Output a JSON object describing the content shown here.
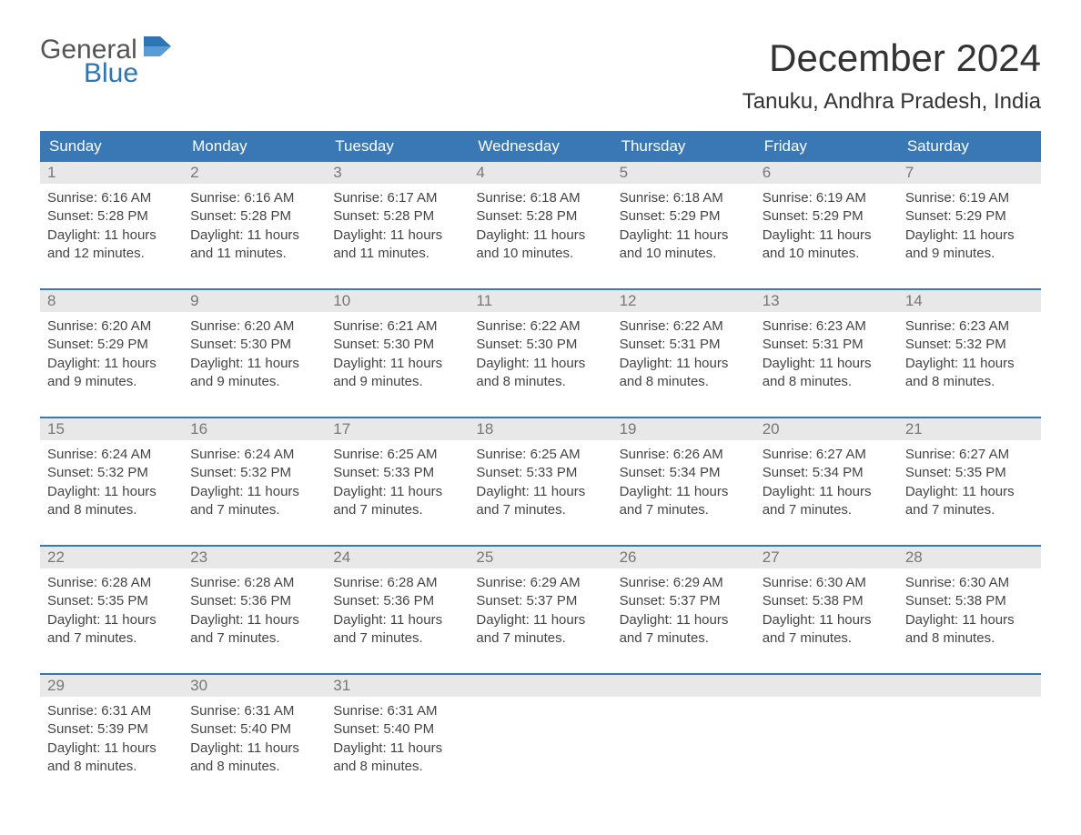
{
  "brand": {
    "word1": "General",
    "word2": "Blue",
    "flag_color": "#2e75b6",
    "word1_color": "#555555",
    "word2_color": "#2e75b6"
  },
  "header": {
    "month_title": "December 2024",
    "location": "Tanuku, Andhra Pradesh, India"
  },
  "colors": {
    "header_bg": "#3a78b5",
    "header_text": "#ffffff",
    "daynum_bg": "#e8e8e8",
    "daynum_text": "#777777",
    "body_text": "#444444",
    "week_border": "#3a78b5",
    "page_bg": "#ffffff"
  },
  "typography": {
    "month_title_fontsize": 42,
    "location_fontsize": 24,
    "dayheader_fontsize": 17,
    "daynum_fontsize": 17,
    "cell_fontsize": 15
  },
  "day_names": [
    "Sunday",
    "Monday",
    "Tuesday",
    "Wednesday",
    "Thursday",
    "Friday",
    "Saturday"
  ],
  "labels": {
    "sunrise": "Sunrise:",
    "sunset": "Sunset:",
    "daylight_prefix": "Daylight:",
    "hours_word": "hours",
    "and_word": "and",
    "minutes_word": "minutes."
  },
  "weeks": [
    [
      {
        "n": 1,
        "sunrise": "6:16 AM",
        "sunset": "5:28 PM",
        "dh": 11,
        "dm": 12
      },
      {
        "n": 2,
        "sunrise": "6:16 AM",
        "sunset": "5:28 PM",
        "dh": 11,
        "dm": 11
      },
      {
        "n": 3,
        "sunrise": "6:17 AM",
        "sunset": "5:28 PM",
        "dh": 11,
        "dm": 11
      },
      {
        "n": 4,
        "sunrise": "6:18 AM",
        "sunset": "5:28 PM",
        "dh": 11,
        "dm": 10
      },
      {
        "n": 5,
        "sunrise": "6:18 AM",
        "sunset": "5:29 PM",
        "dh": 11,
        "dm": 10
      },
      {
        "n": 6,
        "sunrise": "6:19 AM",
        "sunset": "5:29 PM",
        "dh": 11,
        "dm": 10
      },
      {
        "n": 7,
        "sunrise": "6:19 AM",
        "sunset": "5:29 PM",
        "dh": 11,
        "dm": 9
      }
    ],
    [
      {
        "n": 8,
        "sunrise": "6:20 AM",
        "sunset": "5:29 PM",
        "dh": 11,
        "dm": 9
      },
      {
        "n": 9,
        "sunrise": "6:20 AM",
        "sunset": "5:30 PM",
        "dh": 11,
        "dm": 9
      },
      {
        "n": 10,
        "sunrise": "6:21 AM",
        "sunset": "5:30 PM",
        "dh": 11,
        "dm": 9
      },
      {
        "n": 11,
        "sunrise": "6:22 AM",
        "sunset": "5:30 PM",
        "dh": 11,
        "dm": 8
      },
      {
        "n": 12,
        "sunrise": "6:22 AM",
        "sunset": "5:31 PM",
        "dh": 11,
        "dm": 8
      },
      {
        "n": 13,
        "sunrise": "6:23 AM",
        "sunset": "5:31 PM",
        "dh": 11,
        "dm": 8
      },
      {
        "n": 14,
        "sunrise": "6:23 AM",
        "sunset": "5:32 PM",
        "dh": 11,
        "dm": 8
      }
    ],
    [
      {
        "n": 15,
        "sunrise": "6:24 AM",
        "sunset": "5:32 PM",
        "dh": 11,
        "dm": 8
      },
      {
        "n": 16,
        "sunrise": "6:24 AM",
        "sunset": "5:32 PM",
        "dh": 11,
        "dm": 7
      },
      {
        "n": 17,
        "sunrise": "6:25 AM",
        "sunset": "5:33 PM",
        "dh": 11,
        "dm": 7
      },
      {
        "n": 18,
        "sunrise": "6:25 AM",
        "sunset": "5:33 PM",
        "dh": 11,
        "dm": 7
      },
      {
        "n": 19,
        "sunrise": "6:26 AM",
        "sunset": "5:34 PM",
        "dh": 11,
        "dm": 7
      },
      {
        "n": 20,
        "sunrise": "6:27 AM",
        "sunset": "5:34 PM",
        "dh": 11,
        "dm": 7
      },
      {
        "n": 21,
        "sunrise": "6:27 AM",
        "sunset": "5:35 PM",
        "dh": 11,
        "dm": 7
      }
    ],
    [
      {
        "n": 22,
        "sunrise": "6:28 AM",
        "sunset": "5:35 PM",
        "dh": 11,
        "dm": 7
      },
      {
        "n": 23,
        "sunrise": "6:28 AM",
        "sunset": "5:36 PM",
        "dh": 11,
        "dm": 7
      },
      {
        "n": 24,
        "sunrise": "6:28 AM",
        "sunset": "5:36 PM",
        "dh": 11,
        "dm": 7
      },
      {
        "n": 25,
        "sunrise": "6:29 AM",
        "sunset": "5:37 PM",
        "dh": 11,
        "dm": 7
      },
      {
        "n": 26,
        "sunrise": "6:29 AM",
        "sunset": "5:37 PM",
        "dh": 11,
        "dm": 7
      },
      {
        "n": 27,
        "sunrise": "6:30 AM",
        "sunset": "5:38 PM",
        "dh": 11,
        "dm": 7
      },
      {
        "n": 28,
        "sunrise": "6:30 AM",
        "sunset": "5:38 PM",
        "dh": 11,
        "dm": 8
      }
    ],
    [
      {
        "n": 29,
        "sunrise": "6:31 AM",
        "sunset": "5:39 PM",
        "dh": 11,
        "dm": 8
      },
      {
        "n": 30,
        "sunrise": "6:31 AM",
        "sunset": "5:40 PM",
        "dh": 11,
        "dm": 8
      },
      {
        "n": 31,
        "sunrise": "6:31 AM",
        "sunset": "5:40 PM",
        "dh": 11,
        "dm": 8
      },
      null,
      null,
      null,
      null
    ]
  ]
}
